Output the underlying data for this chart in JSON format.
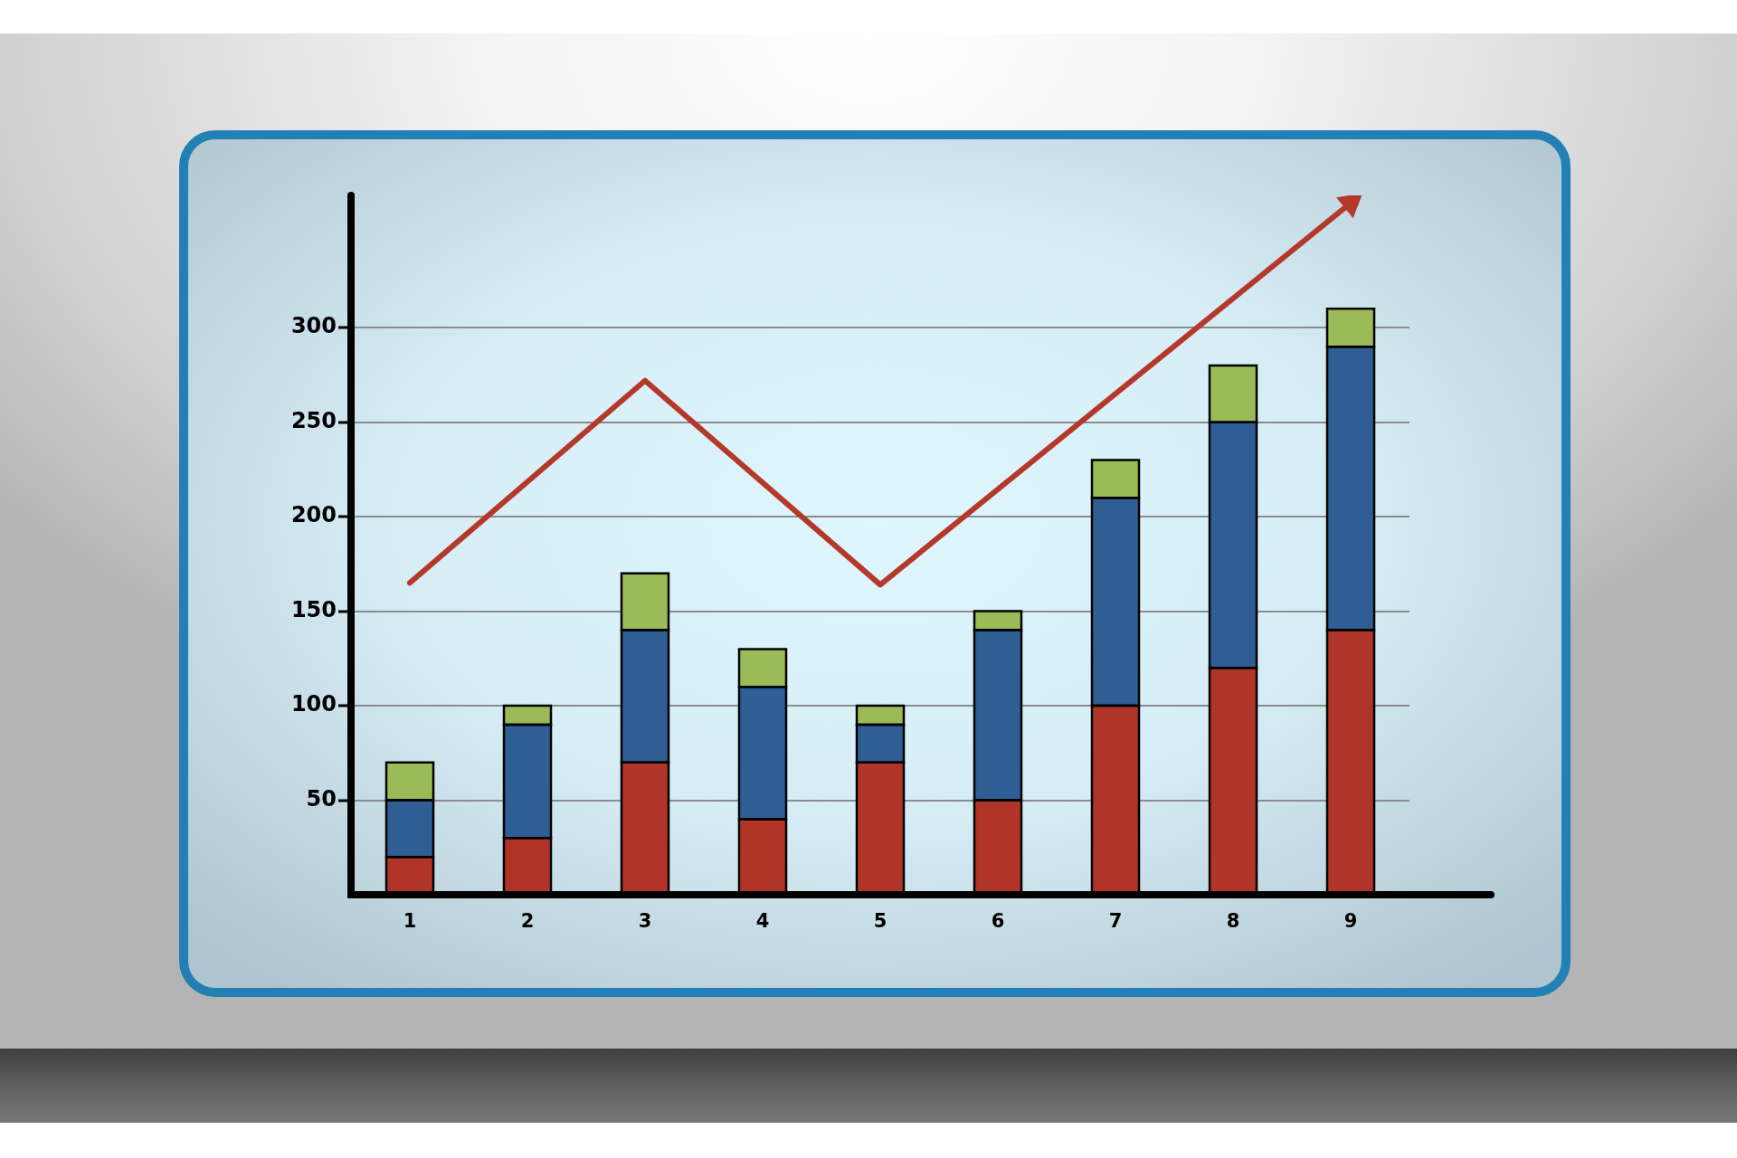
{
  "chart_data": {
    "type": "bar",
    "stacked": true,
    "categories": [
      "1",
      "2",
      "3",
      "4",
      "5",
      "6",
      "7",
      "8",
      "9"
    ],
    "series": [
      {
        "color": "#b03427",
        "values": [
          20,
          30,
          70,
          40,
          70,
          50,
          100,
          120,
          140
        ]
      },
      {
        "color": "#2e5e93",
        "values": [
          30,
          60,
          70,
          70,
          20,
          90,
          110,
          130,
          150
        ]
      },
      {
        "color": "#9bbb59",
        "values": [
          20,
          10,
          30,
          20,
          10,
          10,
          20,
          30,
          20
        ]
      },
      {
        "type": "line",
        "color": "#b5382a",
        "x": [
          "1",
          "3",
          "5",
          "9"
        ],
        "values": [
          165,
          272,
          164,
          366
        ]
      }
    ],
    "ylim": [
      0,
      370
    ],
    "yticks": [
      50,
      100,
      150,
      200,
      250,
      300
    ],
    "grid": "y",
    "marker": "none"
  }
}
